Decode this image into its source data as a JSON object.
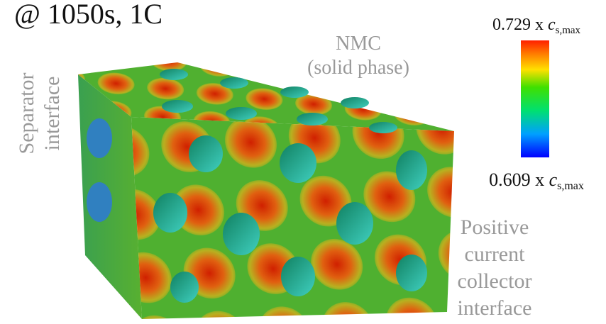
{
  "header": {
    "title": "@ 1050s, 1C"
  },
  "labels": {
    "material": [
      "NMC",
      "(solid phase)"
    ],
    "left_face": [
      "Separator",
      "interface"
    ],
    "right_face": [
      "Positive",
      "current",
      "collector",
      "interface"
    ]
  },
  "colorbar": {
    "max": {
      "value": 0.729,
      "times": "x",
      "symbol": "c",
      "subscript": "s,max"
    },
    "min": {
      "value": 0.609,
      "times": "x",
      "symbol": "c",
      "subscript": "s,max"
    }
  }
}
